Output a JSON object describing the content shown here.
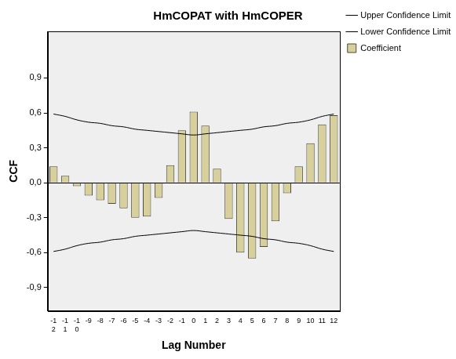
{
  "chart_data": {
    "type": "bar",
    "title": "HmCOPAT with HmCOPER",
    "x_label": "Lag Number",
    "y_label": "CCF",
    "categories": [
      "-12",
      "-11",
      "-10",
      "-9",
      "-8",
      "-7",
      "-6",
      "-5",
      "-4",
      "-3",
      "-2",
      "-1",
      "0",
      "1",
      "2",
      "3",
      "4",
      "5",
      "6",
      "7",
      "8",
      "9",
      "10",
      "11",
      "12"
    ],
    "series": [
      {
        "name": "Coefficient",
        "type": "bar",
        "color": "#d8d09c",
        "values": [
          0.14,
          0.06,
          -0.03,
          -0.11,
          -0.15,
          -0.18,
          -0.22,
          -0.3,
          -0.29,
          -0.13,
          0.15,
          0.45,
          0.61,
          0.49,
          0.12,
          -0.31,
          -0.6,
          -0.65,
          -0.55,
          -0.33,
          -0.09,
          0.14,
          0.34,
          0.5,
          0.58
        ]
      },
      {
        "name": "Upper Confidence Limit",
        "type": "line",
        "color": "#000000",
        "values": [
          0.59,
          0.57,
          0.54,
          0.52,
          0.51,
          0.49,
          0.48,
          0.46,
          0.45,
          0.44,
          0.43,
          0.42,
          0.41,
          0.42,
          0.43,
          0.44,
          0.45,
          0.46,
          0.48,
          0.49,
          0.51,
          0.52,
          0.54,
          0.57,
          0.59
        ]
      },
      {
        "name": "Lower Confidence Limit",
        "type": "line",
        "color": "#000000",
        "values": [
          -0.59,
          -0.57,
          -0.54,
          -0.52,
          -0.51,
          -0.49,
          -0.48,
          -0.46,
          -0.45,
          -0.44,
          -0.43,
          -0.42,
          -0.41,
          -0.42,
          -0.43,
          -0.44,
          -0.45,
          -0.46,
          -0.48,
          -0.49,
          -0.51,
          -0.52,
          -0.54,
          -0.57,
          -0.59
        ]
      }
    ],
    "ylim": [
      -1.1,
      1.3
    ],
    "yticks": [
      {
        "value": -0.9,
        "label": "-0,9"
      },
      {
        "value": -0.6,
        "label": "-0,6"
      },
      {
        "value": -0.3,
        "label": "-0,3"
      },
      {
        "value": 0.0,
        "label": "0,0"
      },
      {
        "value": 0.3,
        "label": "0,3"
      },
      {
        "value": 0.6,
        "label": "0,6"
      },
      {
        "value": 0.9,
        "label": "0,9"
      }
    ],
    "grid": false,
    "legend": "upper right"
  }
}
